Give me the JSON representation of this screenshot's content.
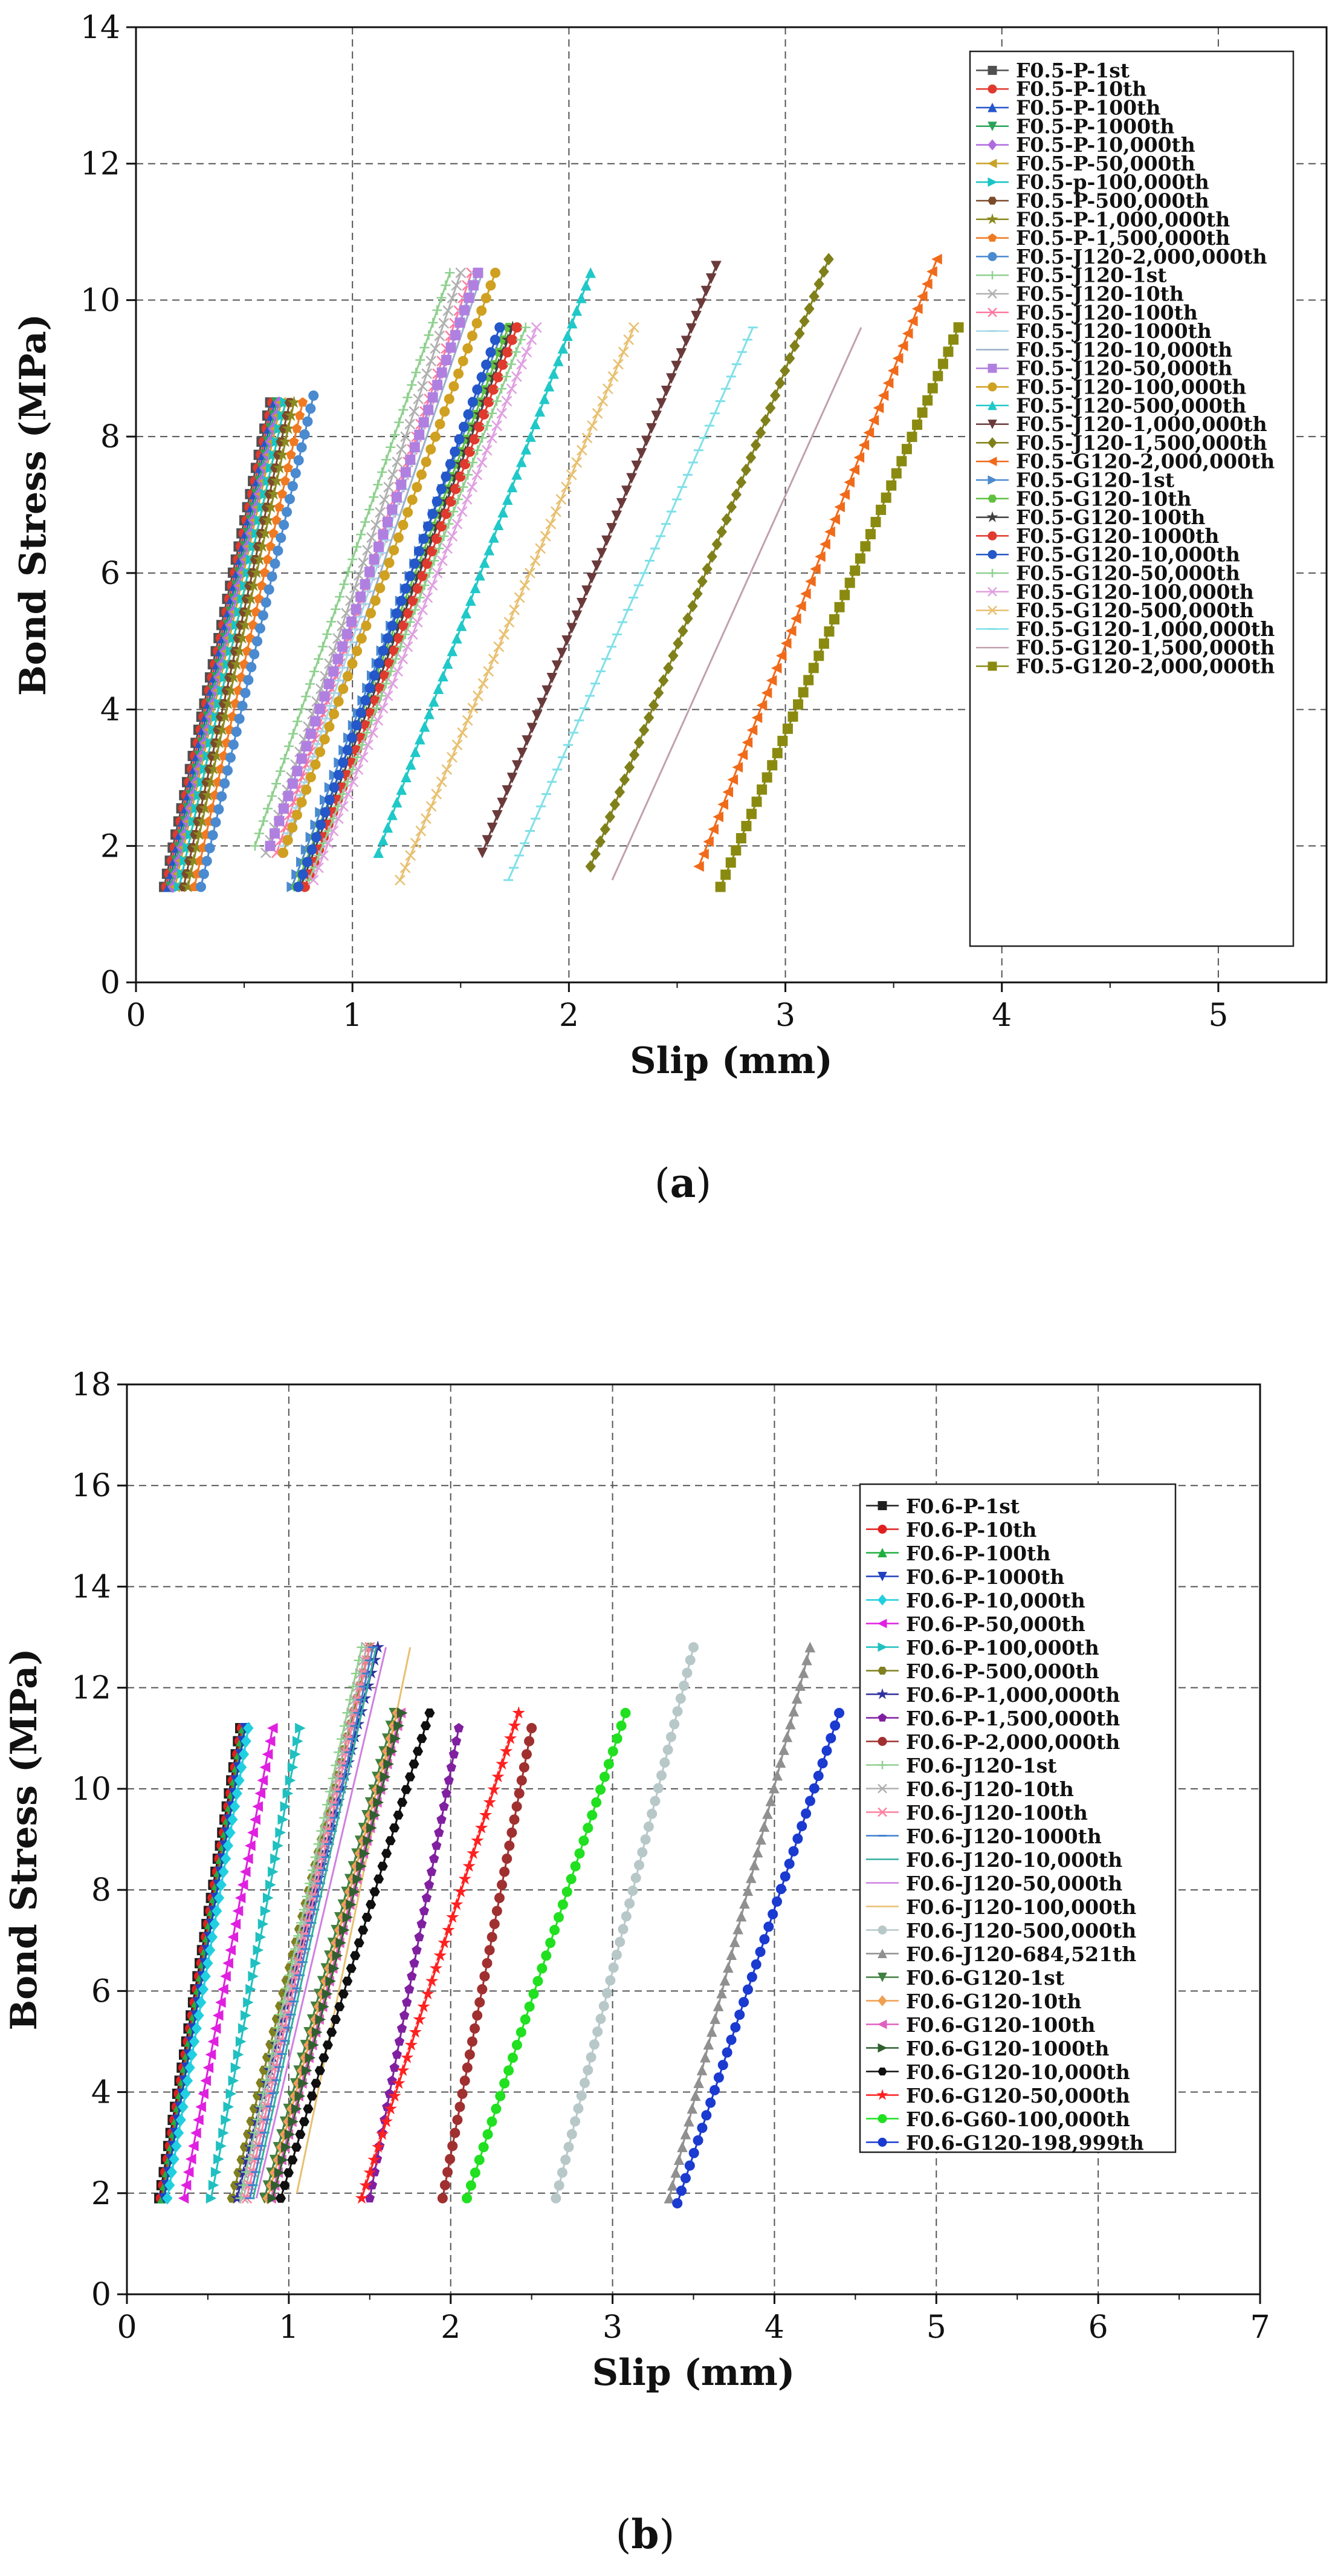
{
  "chart_data": [
    {
      "type": "line",
      "panel_label": "a",
      "xlabel": "Slip (mm)",
      "ylabel": "Bond Stress (MPa)",
      "xlim": [
        0,
        5.5
      ],
      "ylim": [
        0,
        14
      ],
      "xticks": [
        0,
        1,
        2,
        3,
        4,
        5
      ],
      "yticks": [
        0,
        2,
        4,
        6,
        8,
        10,
        12,
        14
      ],
      "grid": true,
      "legend_position": "right",
      "series": [
        {
          "name": "F0.5-P-1st",
          "color": "#505050",
          "marker": "square",
          "x": [
            0.13,
            0.62
          ],
          "y": [
            1.4,
            8.5
          ]
        },
        {
          "name": "F0.5-P-10th",
          "color": "#e03a2e",
          "marker": "circle",
          "x": [
            0.14,
            0.63
          ],
          "y": [
            1.4,
            8.5
          ]
        },
        {
          "name": "F0.5-P-100th",
          "color": "#2457c9",
          "marker": "triangle-up",
          "x": [
            0.15,
            0.64
          ],
          "y": [
            1.4,
            8.5
          ]
        },
        {
          "name": "F0.5-P-1000th",
          "color": "#2aa35a",
          "marker": "triangle-down",
          "x": [
            0.16,
            0.65
          ],
          "y": [
            1.4,
            8.5
          ]
        },
        {
          "name": "F0.5-P-10,000th",
          "color": "#b06be0",
          "marker": "diamond",
          "x": [
            0.17,
            0.66
          ],
          "y": [
            1.4,
            8.5
          ]
        },
        {
          "name": "F0.5-P-50,000th",
          "color": "#c9a227",
          "marker": "triangle-left",
          "x": [
            0.18,
            0.67
          ],
          "y": [
            1.4,
            8.5
          ]
        },
        {
          "name": "F0.5-p-100,000th",
          "color": "#18c4c4",
          "marker": "triangle-right",
          "x": [
            0.2,
            0.69
          ],
          "y": [
            1.4,
            8.5
          ]
        },
        {
          "name": "F0.5-P-500,000th",
          "color": "#7a4a2a",
          "marker": "hexagon",
          "x": [
            0.22,
            0.71
          ],
          "y": [
            1.4,
            8.5
          ]
        },
        {
          "name": "F0.5-P-1,000,000th",
          "color": "#8a8a20",
          "marker": "star",
          "x": [
            0.24,
            0.73
          ],
          "y": [
            1.4,
            8.5
          ]
        },
        {
          "name": "F0.5-P-1,500,000th",
          "color": "#f07a22",
          "marker": "pentagon",
          "x": [
            0.27,
            0.77
          ],
          "y": [
            1.4,
            8.5
          ]
        },
        {
          "name": "F0.5-J120-2,000,000th",
          "color": "#4a8ad0",
          "marker": "circle",
          "x": [
            0.3,
            0.82
          ],
          "y": [
            1.4,
            8.6
          ]
        },
        {
          "name": "F0.5-J120-1st",
          "color": "#8fd08f",
          "marker": "plus",
          "x": [
            0.55,
            1.45
          ],
          "y": [
            2.0,
            10.4
          ]
        },
        {
          "name": "F0.5-J120-10th",
          "color": "#b0b0b0",
          "marker": "x",
          "x": [
            0.6,
            1.5
          ],
          "y": [
            1.9,
            10.4
          ]
        },
        {
          "name": "F0.5-J120-100th",
          "color": "#ff7aa0",
          "marker": "x",
          "x": [
            0.65,
            1.55
          ],
          "y": [
            1.9,
            10.4
          ]
        },
        {
          "name": "F0.5-J120-1000th",
          "color": "#a8d8e8",
          "marker": "dash",
          "x": [
            0.68,
            1.57
          ],
          "y": [
            2.0,
            10.4
          ]
        },
        {
          "name": "F0.5-J120-10,000th",
          "color": "#9ab0c8",
          "marker": "line",
          "x": [
            0.7,
            1.6
          ],
          "y": [
            2.0,
            10.4
          ]
        },
        {
          "name": "F0.5-J120-50,000th",
          "color": "#b080e0",
          "marker": "square",
          "x": [
            0.62,
            1.58
          ],
          "y": [
            2.0,
            10.4
          ]
        },
        {
          "name": "F0.5-J120-100,000th",
          "color": "#d0a020",
          "marker": "circle",
          "x": [
            0.68,
            1.66
          ],
          "y": [
            1.9,
            10.4
          ]
        },
        {
          "name": "F0.5-J120-500,000th",
          "color": "#20c8c8",
          "marker": "triangle-up",
          "x": [
            1.12,
            2.1
          ],
          "y": [
            1.9,
            10.4
          ]
        },
        {
          "name": "F0.5-J120-1,000,000th",
          "color": "#6a3a3a",
          "marker": "triangle-down",
          "x": [
            1.6,
            2.68
          ],
          "y": [
            1.9,
            10.5
          ]
        },
        {
          "name": "F0.5-J120-1,500,000th",
          "color": "#80801a",
          "marker": "diamond",
          "x": [
            2.1,
            3.2
          ],
          "y": [
            1.7,
            10.6
          ]
        },
        {
          "name": "F0.5-G120-2,000,000th",
          "color": "#f06a1a",
          "marker": "triangle-left",
          "x": [
            2.6,
            3.7
          ],
          "y": [
            1.7,
            10.6
          ]
        },
        {
          "name": "F0.5-G120-1st",
          "color": "#4a8ad0",
          "marker": "triangle-right",
          "x": [
            0.72,
            1.7
          ],
          "y": [
            1.4,
            9.6
          ]
        },
        {
          "name": "F0.5-G120-10th",
          "color": "#60c040",
          "marker": "hexagon",
          "x": [
            0.74,
            1.72
          ],
          "y": [
            1.4,
            9.6
          ]
        },
        {
          "name": "F0.5-G120-100th",
          "color": "#404040",
          "marker": "star",
          "x": [
            0.76,
            1.74
          ],
          "y": [
            1.4,
            9.6
          ]
        },
        {
          "name": "F0.5-G120-1000th",
          "color": "#e03a2e",
          "marker": "circle",
          "x": [
            0.78,
            1.76
          ],
          "y": [
            1.4,
            9.6
          ]
        },
        {
          "name": "F0.5-G120-10,000th",
          "color": "#2457c9",
          "marker": "circle",
          "x": [
            0.75,
            1.68
          ],
          "y": [
            1.4,
            9.6
          ]
        },
        {
          "name": "F0.5-G120-50,000th",
          "color": "#8fd08f",
          "marker": "plus",
          "x": [
            0.8,
            1.8
          ],
          "y": [
            1.5,
            9.6
          ]
        },
        {
          "name": "F0.5-G120-100,000th",
          "color": "#e0a0e0",
          "marker": "x",
          "x": [
            0.82,
            1.85
          ],
          "y": [
            1.5,
            9.6
          ]
        },
        {
          "name": "F0.5-G120-500,000th",
          "color": "#e8c070",
          "marker": "x",
          "x": [
            1.22,
            2.3
          ],
          "y": [
            1.5,
            9.6
          ]
        },
        {
          "name": "F0.5-G120-1,000,000th",
          "color": "#80e0e8",
          "marker": "dash",
          "x": [
            1.72,
            2.85
          ],
          "y": [
            1.5,
            9.6
          ]
        },
        {
          "name": "F0.5-G120-1,500,000th",
          "color": "#c0a0b0",
          "marker": "line",
          "x": [
            2.2,
            3.35
          ],
          "y": [
            1.5,
            9.6
          ]
        },
        {
          "name": "F0.5-G120-2,000,000th",
          "color": "#8a8a10",
          "marker": "square",
          "x": [
            2.7,
            3.8
          ],
          "y": [
            1.4,
            9.6
          ]
        }
      ]
    },
    {
      "type": "line",
      "panel_label": "b",
      "xlabel": "Slip (mm)",
      "ylabel": "Bond Stress (MPa)",
      "xlim": [
        0,
        7
      ],
      "ylim": [
        0,
        18
      ],
      "xticks": [
        0,
        1,
        2,
        3,
        4,
        5,
        6,
        7
      ],
      "yticks": [
        0,
        2,
        4,
        6,
        8,
        10,
        12,
        14,
        16,
        18
      ],
      "grid": true,
      "legend_position": "right",
      "series": [
        {
          "name": "F0.6-P-1st",
          "color": "#202020",
          "marker": "square",
          "x": [
            0.2,
            0.7
          ],
          "y": [
            1.9,
            11.2
          ]
        },
        {
          "name": "F0.6-P-10th",
          "color": "#e02020",
          "marker": "circle",
          "x": [
            0.21,
            0.71
          ],
          "y": [
            1.9,
            11.2
          ]
        },
        {
          "name": "F0.6-P-100th",
          "color": "#20b040",
          "marker": "triangle-up",
          "x": [
            0.22,
            0.72
          ],
          "y": [
            1.9,
            11.2
          ]
        },
        {
          "name": "F0.6-P-1000th",
          "color": "#2040c0",
          "marker": "triangle-down",
          "x": [
            0.23,
            0.73
          ],
          "y": [
            1.9,
            11.2
          ]
        },
        {
          "name": "F0.6-P-10,000th",
          "color": "#20d0e0",
          "marker": "diamond",
          "x": [
            0.25,
            0.75
          ],
          "y": [
            1.9,
            11.2
          ]
        },
        {
          "name": "F0.6-P-50,000th",
          "color": "#e020e0",
          "marker": "triangle-left",
          "x": [
            0.35,
            0.9
          ],
          "y": [
            1.9,
            11.2
          ]
        },
        {
          "name": "F0.6-P-100,000th",
          "color": "#20c0c0",
          "marker": "triangle-right",
          "x": [
            0.52,
            1.07
          ],
          "y": [
            1.9,
            11.2
          ]
        },
        {
          "name": "F0.6-P-500,000th",
          "color": "#808020",
          "marker": "hexagon",
          "x": [
            0.65,
            1.5
          ],
          "y": [
            1.9,
            12.8
          ]
        },
        {
          "name": "F0.6-P-1,000,000th",
          "color": "#3030a0",
          "marker": "star",
          "x": [
            0.68,
            1.55
          ],
          "y": [
            1.9,
            12.8
          ]
        },
        {
          "name": "F0.6-P-1,500,000th",
          "color": "#8020a0",
          "marker": "pentagon",
          "x": [
            1.5,
            2.05
          ],
          "y": [
            1.9,
            11.2
          ]
        },
        {
          "name": "F0.6-P-2,000,000th",
          "color": "#a03030",
          "marker": "circle",
          "x": [
            1.95,
            2.5
          ],
          "y": [
            1.9,
            11.2
          ]
        },
        {
          "name": "F0.6-J120-1st",
          "color": "#90d090",
          "marker": "plus",
          "x": [
            0.7,
            1.45
          ],
          "y": [
            1.9,
            12.8
          ]
        },
        {
          "name": "F0.6-J120-10th",
          "color": "#b0b0b0",
          "marker": "x",
          "x": [
            0.72,
            1.48
          ],
          "y": [
            1.9,
            12.8
          ]
        },
        {
          "name": "F0.6-J120-100th",
          "color": "#ff80a0",
          "marker": "x",
          "x": [
            0.74,
            1.5
          ],
          "y": [
            1.9,
            12.8
          ]
        },
        {
          "name": "F0.6-J120-1000th",
          "color": "#4080d0",
          "marker": "dash",
          "x": [
            0.76,
            1.52
          ],
          "y": [
            1.9,
            12.8
          ]
        },
        {
          "name": "F0.6-J120-10,000th",
          "color": "#30b0a0",
          "marker": "line",
          "x": [
            0.78,
            1.54
          ],
          "y": [
            1.9,
            12.8
          ]
        },
        {
          "name": "F0.6-J120-50,000th",
          "color": "#d080e0",
          "marker": "line",
          "x": [
            0.8,
            1.6
          ],
          "y": [
            1.9,
            12.8
          ]
        },
        {
          "name": "F0.6-J120-100,000th",
          "color": "#e8c070",
          "marker": "line",
          "x": [
            1.05,
            1.75
          ],
          "y": [
            2.0,
            12.8
          ]
        },
        {
          "name": "F0.6-J120-500,000th",
          "color": "#b8c8c8",
          "marker": "circle",
          "x": [
            2.65,
            3.5
          ],
          "y": [
            1.9,
            12.8
          ]
        },
        {
          "name": "F0.6-J120-684,521th",
          "color": "#909090",
          "marker": "triangle-up",
          "x": [
            3.35,
            4.22
          ],
          "y": [
            1.9,
            12.8
          ]
        },
        {
          "name": "F0.6-G120-1st",
          "color": "#408040",
          "marker": "triangle-down",
          "x": [
            0.85,
            1.65
          ],
          "y": [
            1.9,
            11.5
          ]
        },
        {
          "name": "F0.6-G120-10th",
          "color": "#f0a050",
          "marker": "diamond",
          "x": [
            0.87,
            1.67
          ],
          "y": [
            1.9,
            11.5
          ]
        },
        {
          "name": "F0.6-G120-100th",
          "color": "#e060c0",
          "marker": "triangle-left",
          "x": [
            0.89,
            1.69
          ],
          "y": [
            1.9,
            11.5
          ]
        },
        {
          "name": "F0.6-G120-1000th",
          "color": "#306030",
          "marker": "triangle-right",
          "x": [
            0.9,
            1.7
          ],
          "y": [
            1.9,
            11.5
          ]
        },
        {
          "name": "F0.6-G120-10,000th",
          "color": "#101010",
          "marker": "hexagon",
          "x": [
            0.95,
            1.87
          ],
          "y": [
            1.9,
            11.5
          ]
        },
        {
          "name": "F0.6-G120-50,000th",
          "color": "#ff2020",
          "marker": "star",
          "x": [
            1.45,
            2.42
          ],
          "y": [
            1.9,
            11.5
          ]
        },
        {
          "name": "F0.6-G60-100,000th",
          "color": "#20e020",
          "marker": "circle",
          "x": [
            2.1,
            3.08
          ],
          "y": [
            1.9,
            11.5
          ]
        },
        {
          "name": "F0.6-G120-198,999th",
          "color": "#1a3ad0",
          "marker": "circle",
          "x": [
            3.4,
            4.4
          ],
          "y": [
            1.8,
            11.5
          ]
        }
      ]
    }
  ]
}
